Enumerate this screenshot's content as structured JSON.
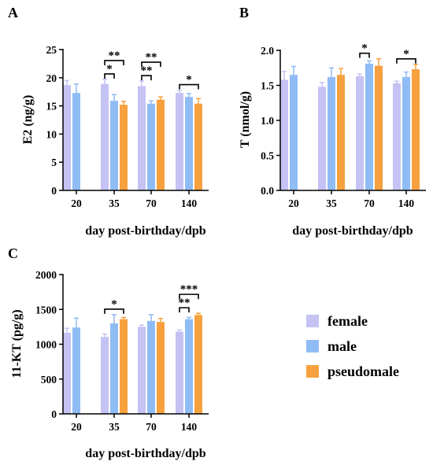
{
  "colors": {
    "female": "#c5c2f4",
    "male": "#8fbcf5",
    "pseudomale": "#f7a13e",
    "axis": "#000000"
  },
  "legend": [
    {
      "key": "female",
      "label": "female"
    },
    {
      "key": "male",
      "label": "male"
    },
    {
      "key": "pseudomale",
      "label": "pseudomale"
    }
  ],
  "chart_data": [
    {
      "panel": "A",
      "type": "bar",
      "ylabel": "E2 (ng/g)",
      "xlabel": "day post-birthday/dpb",
      "categories": [
        "20",
        "35",
        "70",
        "140"
      ],
      "ylim": [
        0,
        25
      ],
      "yticks": [
        0,
        5,
        10,
        15,
        20,
        25
      ],
      "series": [
        {
          "key": "female",
          "name": "female",
          "values": [
            18.7,
            18.9,
            18.5,
            17.3
          ],
          "errors": [
            0.8,
            0.8,
            0.9,
            0.5
          ]
        },
        {
          "key": "male",
          "name": "male",
          "values": [
            17.3,
            15.9,
            15.4,
            16.6
          ],
          "errors": [
            1.6,
            1.1,
            0.5,
            0.6
          ]
        },
        {
          "key": "pseudomale",
          "name": "pseudomale",
          "values": [
            null,
            15.2,
            16.1,
            15.4
          ],
          "errors": [
            null,
            0.6,
            0.5,
            0.9
          ]
        }
      ],
      "significance": [
        {
          "category": 1,
          "from": "female",
          "to": "male",
          "label": "*",
          "level": 0
        },
        {
          "category": 1,
          "from": "female",
          "to": "pseudomale",
          "label": "**",
          "level": 1
        },
        {
          "category": 2,
          "from": "female",
          "to": "male",
          "label": "**",
          "level": 0
        },
        {
          "category": 2,
          "from": "female",
          "to": "pseudomale",
          "label": "**",
          "level": 1
        },
        {
          "category": 3,
          "from": "female",
          "to": "pseudomale",
          "label": "*",
          "level": 0
        }
      ]
    },
    {
      "panel": "B",
      "type": "bar",
      "ylabel": "T (nmol/g)",
      "xlabel": "day post-birthday/dpb",
      "categories": [
        "20",
        "35",
        "70",
        "140"
      ],
      "ylim": [
        0,
        2.0
      ],
      "yticks": [
        "0.0",
        "0.5",
        "1.0",
        "1.5",
        "2.0"
      ],
      "series": [
        {
          "key": "female",
          "name": "female",
          "values": [
            1.58,
            1.48,
            1.63,
            1.53
          ],
          "errors": [
            0.12,
            0.06,
            0.03,
            0.03
          ]
        },
        {
          "key": "male",
          "name": "male",
          "values": [
            1.65,
            1.62,
            1.81,
            1.62
          ],
          "errors": [
            0.12,
            0.13,
            0.04,
            0.07
          ]
        },
        {
          "key": "pseudomale",
          "name": "pseudomale",
          "values": [
            null,
            1.65,
            1.78,
            1.73
          ],
          "errors": [
            null,
            0.09,
            0.1,
            0.07
          ]
        }
      ],
      "significance": [
        {
          "category": 2,
          "from": "female",
          "to": "male",
          "label": "*",
          "level": 0
        },
        {
          "category": 3,
          "from": "female",
          "to": "pseudomale",
          "label": "*",
          "level": 0
        }
      ]
    },
    {
      "panel": "C",
      "type": "bar",
      "ylabel": "11-KT (pg/g)",
      "xlabel": "day post-birthday/dpb",
      "categories": [
        "20",
        "35",
        "70",
        "140"
      ],
      "ylim": [
        0,
        2000
      ],
      "yticks": [
        0,
        500,
        1000,
        1500,
        2000
      ],
      "series": [
        {
          "key": "female",
          "name": "female",
          "values": [
            1165,
            1105,
            1250,
            1180
          ],
          "errors": [
            65,
            40,
            25,
            25
          ]
        },
        {
          "key": "male",
          "name": "male",
          "values": [
            1240,
            1300,
            1335,
            1360
          ],
          "errors": [
            135,
            125,
            90,
            25
          ]
        },
        {
          "key": "pseudomale",
          "name": "pseudomale",
          "values": [
            null,
            1360,
            1320,
            1420
          ],
          "errors": [
            null,
            25,
            50,
            25
          ]
        }
      ],
      "significance": [
        {
          "category": 1,
          "from": "female",
          "to": "pseudomale",
          "label": "*",
          "level": 0
        },
        {
          "category": 3,
          "from": "female",
          "to": "male",
          "label": "**",
          "level": 0
        },
        {
          "category": 3,
          "from": "female",
          "to": "pseudomale",
          "label": "***",
          "level": 1
        }
      ]
    }
  ]
}
